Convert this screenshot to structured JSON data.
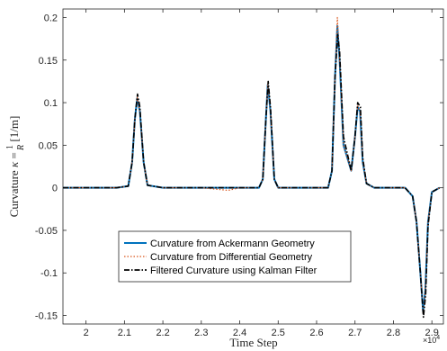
{
  "chart_data": {
    "type": "line",
    "xlabel": "Time Step",
    "ylabel": "Curvature κ = 1/R [1/m]",
    "ylabel_parts": {
      "prefix": "Curvature ",
      "kappa": "κ",
      "eq": " = ",
      "num": "1",
      "den": "R",
      "unit": " [1/m]"
    },
    "x_exponent": "×10",
    "x_exponent_power": "4",
    "xlim": [
      1.94,
      2.93
    ],
    "ylim": [
      -0.16,
      0.21
    ],
    "xticks": [
      2,
      2.1,
      2.2,
      2.3,
      2.4,
      2.5,
      2.6,
      2.7,
      2.8,
      2.9
    ],
    "xtick_labels": [
      "2",
      "2.1",
      "2.2",
      "2.3",
      "2.4",
      "2.5",
      "2.6",
      "2.7",
      "2.8",
      "2.9"
    ],
    "yticks": [
      -0.15,
      -0.1,
      -0.05,
      0,
      0.05,
      0.1,
      0.15,
      0.2
    ],
    "ytick_labels": [
      "-0.15",
      "-0.1",
      "-0.05",
      "0",
      "0.05",
      "0.1",
      "0.15",
      "0.2"
    ],
    "grid": false,
    "legend_position": "lower-left",
    "series": [
      {
        "name": "Curvature from Ackermann Geometry",
        "color": "#0072BD",
        "style": "solid",
        "x": [
          1.94,
          2.0,
          2.08,
          2.11,
          2.12,
          2.127,
          2.133,
          2.14,
          2.15,
          2.16,
          2.2,
          2.3,
          2.4,
          2.45,
          2.46,
          2.468,
          2.473,
          2.48,
          2.49,
          2.5,
          2.55,
          2.6,
          2.63,
          2.64,
          2.648,
          2.654,
          2.66,
          2.67,
          2.69,
          2.7,
          2.707,
          2.713,
          2.72,
          2.73,
          2.75,
          2.8,
          2.83,
          2.85,
          2.86,
          2.87,
          2.877,
          2.883,
          2.89,
          2.9,
          2.92
        ],
        "y": [
          0,
          0,
          0,
          0.002,
          0.03,
          0.08,
          0.105,
          0.09,
          0.03,
          0.003,
          0,
          0,
          0,
          0,
          0.01,
          0.08,
          0.121,
          0.09,
          0.01,
          0,
          0,
          0,
          0,
          0.02,
          0.13,
          0.19,
          0.15,
          0.05,
          0.02,
          0.06,
          0.095,
          0.09,
          0.03,
          0.005,
          0,
          0,
          0,
          -0.01,
          -0.04,
          -0.1,
          -0.145,
          -0.12,
          -0.04,
          -0.005,
          0
        ]
      },
      {
        "name": "Curvature from Differential Geometry",
        "color": "#D95319",
        "style": "dotted",
        "x": [
          1.94,
          2.0,
          2.08,
          2.11,
          2.12,
          2.127,
          2.133,
          2.14,
          2.15,
          2.16,
          2.2,
          2.3,
          2.37,
          2.4,
          2.45,
          2.46,
          2.468,
          2.473,
          2.48,
          2.49,
          2.5,
          2.55,
          2.6,
          2.63,
          2.64,
          2.648,
          2.654,
          2.66,
          2.67,
          2.69,
          2.7,
          2.707,
          2.713,
          2.72,
          2.73,
          2.75,
          2.8,
          2.83,
          2.85,
          2.86,
          2.87,
          2.877,
          2.883,
          2.89,
          2.9,
          2.92
        ],
        "y": [
          0,
          0,
          0,
          0.002,
          0.03,
          0.08,
          0.106,
          0.09,
          0.03,
          0.003,
          0,
          0,
          -0.003,
          0,
          0,
          0.01,
          0.08,
          0.122,
          0.09,
          0.01,
          0,
          0,
          0,
          0,
          0.02,
          0.13,
          0.2,
          0.15,
          0.05,
          0.02,
          0.06,
          0.096,
          0.09,
          0.03,
          0.005,
          0,
          0,
          0,
          -0.01,
          -0.04,
          -0.1,
          -0.147,
          -0.12,
          -0.04,
          -0.005,
          0
        ]
      },
      {
        "name": "Filtered Curvature using Kalman Filter",
        "color": "#000000",
        "style": "dashdot",
        "x": [
          1.94,
          2.0,
          2.08,
          2.11,
          2.12,
          2.127,
          2.134,
          2.14,
          2.15,
          2.16,
          2.2,
          2.3,
          2.4,
          2.45,
          2.46,
          2.468,
          2.474,
          2.48,
          2.49,
          2.5,
          2.55,
          2.6,
          2.63,
          2.64,
          2.648,
          2.655,
          2.66,
          2.67,
          2.69,
          2.7,
          2.707,
          2.714,
          2.72,
          2.73,
          2.75,
          2.8,
          2.83,
          2.85,
          2.86,
          2.87,
          2.878,
          2.884,
          2.89,
          2.9,
          2.92
        ],
        "y": [
          0,
          0,
          0,
          0.002,
          0.03,
          0.08,
          0.11,
          0.095,
          0.03,
          0.003,
          0,
          0,
          0,
          0,
          0.01,
          0.08,
          0.125,
          0.095,
          0.01,
          0,
          0,
          0,
          0,
          0.02,
          0.13,
          0.18,
          0.16,
          0.06,
          0.02,
          0.06,
          0.1,
          0.095,
          0.035,
          0.005,
          0,
          0,
          0,
          -0.01,
          -0.04,
          -0.1,
          -0.152,
          -0.125,
          -0.045,
          -0.005,
          0
        ]
      }
    ]
  }
}
